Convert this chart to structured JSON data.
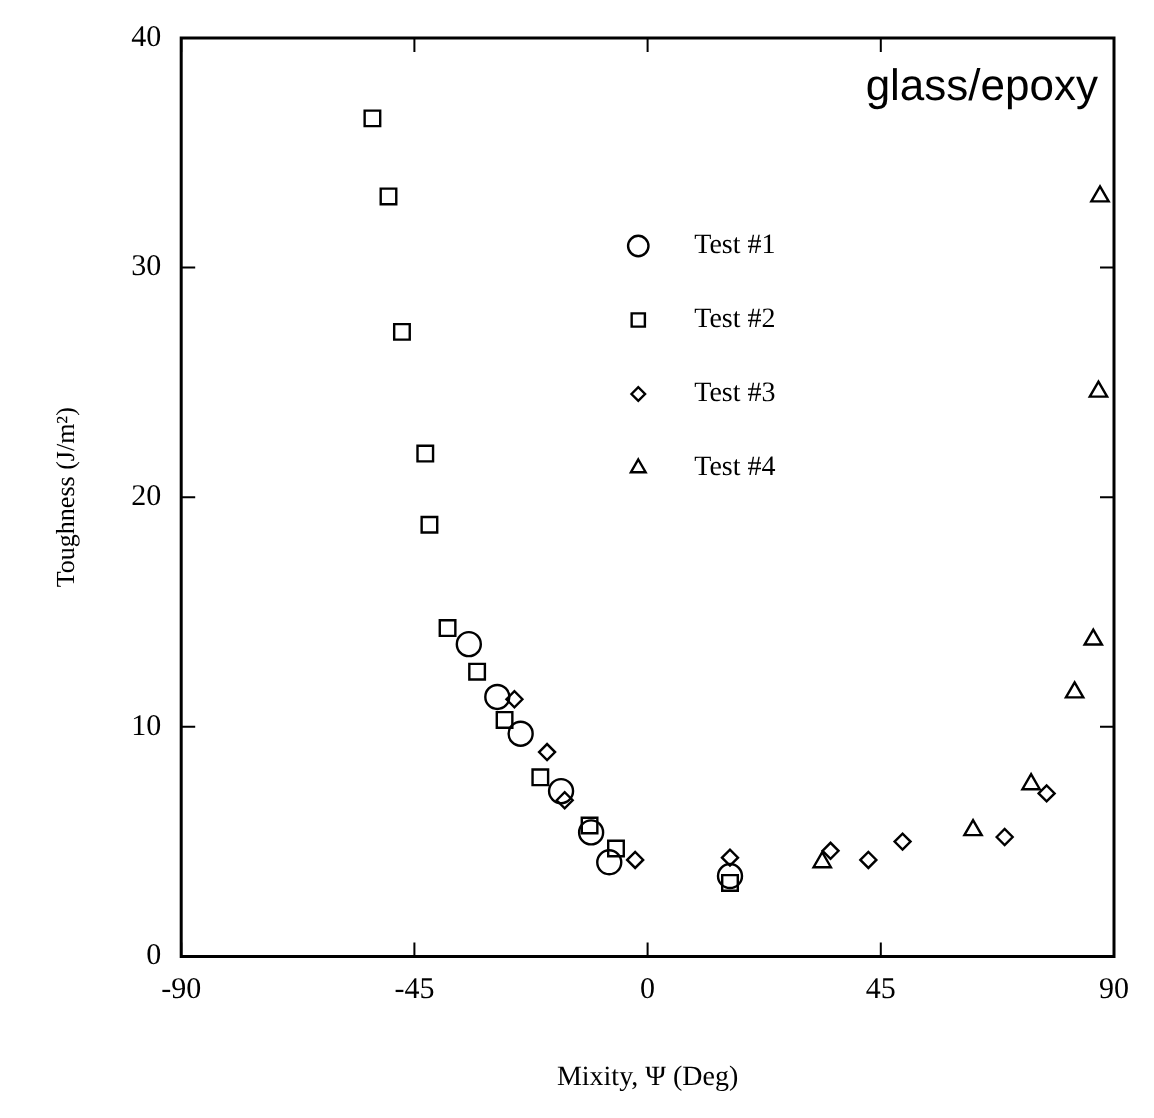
{
  "chart_data": {
    "type": "scatter",
    "xlabel": "Mixity, Ψ (Deg)",
    "ylabel": "Toughness (J/m²)",
    "annotations": [
      "glass/epoxy"
    ],
    "xlim": [
      -90,
      90
    ],
    "xticks": [
      -90,
      -45,
      0,
      45,
      90
    ],
    "ylim": [
      0,
      40
    ],
    "yticks": [
      0,
      10,
      20,
      30,
      40
    ],
    "grid": false,
    "legend": "top",
    "series": [
      {
        "name": "Test #1",
        "color": "#000000",
        "marker": "circle",
        "x": [
          -34.5,
          -29,
          -24.5,
          -16.7,
          -10.9,
          -7.4,
          15.9
        ],
        "values": [
          13.6,
          11.3,
          9.7,
          7.2,
          5.4,
          4.1,
          3.5
        ]
      },
      {
        "name": "Test #2",
        "color": "#000000",
        "marker": "square",
        "x": [
          -53.1,
          -50,
          -47.4,
          -42.9,
          -42.1,
          -38.6,
          -32.9,
          -27.6,
          -20.7,
          -11.2,
          -6.1,
          15.9
        ],
        "values": [
          36.5,
          33.1,
          27.2,
          21.9,
          18.8,
          14.3,
          12.4,
          10.3,
          7.8,
          5.7,
          4.7,
          3.2
        ]
      },
      {
        "name": "Test #3",
        "color": "#000000",
        "marker": "diamond",
        "x": [
          -25.7,
          -19.4,
          -16,
          -2.4,
          15.9,
          35.3,
          42.6,
          49.2,
          68.9,
          77
        ],
        "values": [
          11.2,
          8.9,
          6.8,
          4.2,
          4.3,
          4.6,
          4.2,
          5.0,
          5.2,
          7.1
        ]
      },
      {
        "name": "Test #4",
        "color": "#000000",
        "marker": "triangle",
        "x": [
          33.7,
          62.8,
          74,
          82.4,
          86,
          87.3,
          87
        ],
        "values": [
          4.1,
          5.5,
          7.5,
          11.5,
          13.8,
          33.1,
          24.6
        ]
      }
    ]
  }
}
